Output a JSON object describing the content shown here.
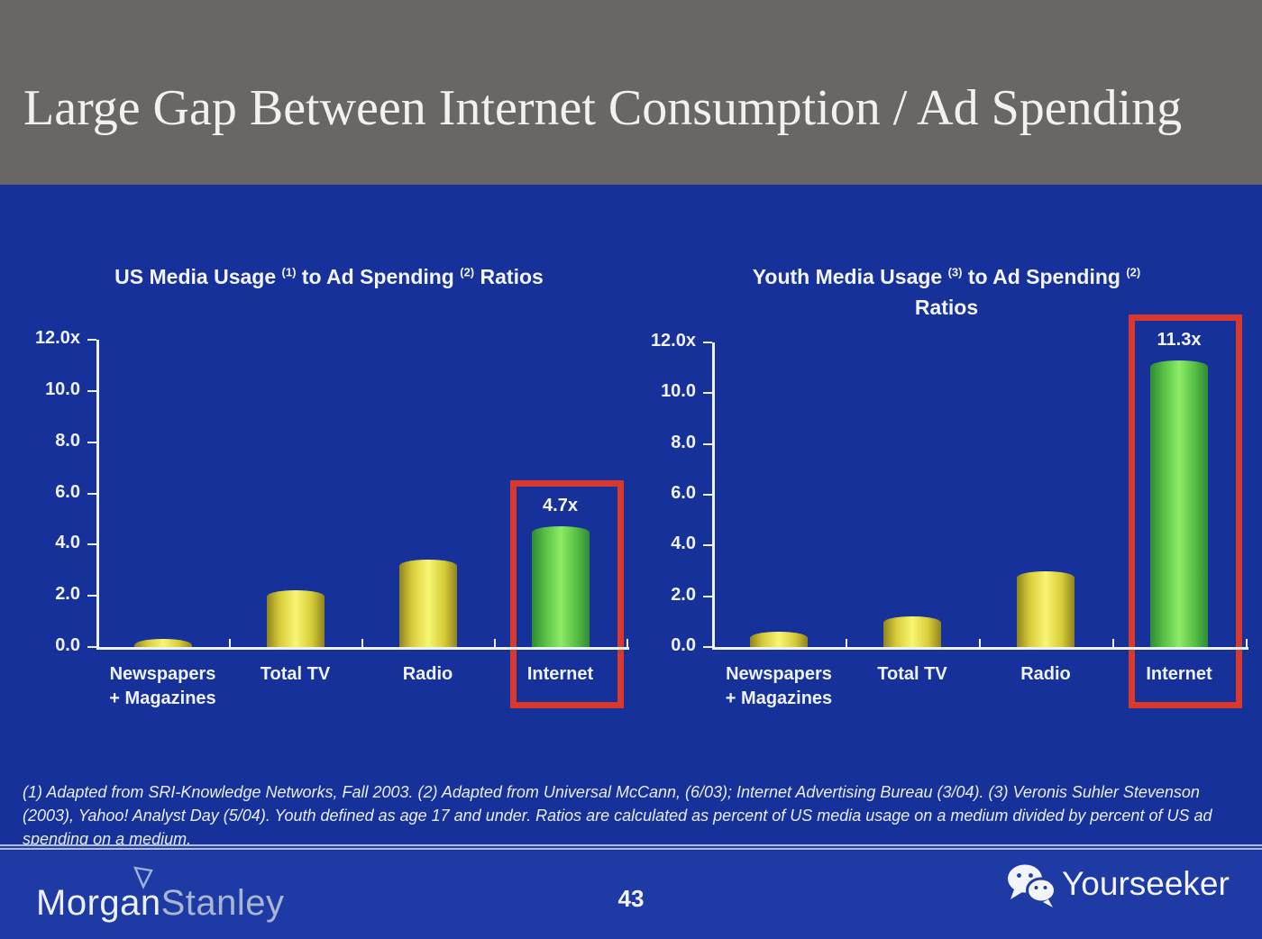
{
  "slide": {
    "title": "Large Gap Between Internet Consumption / Ad Spending",
    "page_number": "43"
  },
  "footnote": "(1) Adapted from SRI-Knowledge Networks, Fall 2003.  (2) Adapted from Universal McCann, (6/03); Internet Advertising Bureau (3/04). (3) Veronis Suhler Stevenson (2003), Yahoo! Analyst Day (5/04).  Youth defined as age 17 and under.  Ratios are calculated as percent of US media usage on a medium divided by percent of US ad spending on a medium.",
  "footer": {
    "logo_morgan": "Morgan",
    "logo_stanley": "Stanley",
    "brand": "Yourseeker"
  },
  "colors": {
    "header_bg": "#686766",
    "slide_bg": "#17319b",
    "footer_bg": "#1e3aa4",
    "bar_yellow": "#e9e34a",
    "bar_green": "#5cc348",
    "highlight_red": "#d9392d",
    "text": "#eef1f6"
  },
  "chart_data": [
    {
      "type": "bar",
      "title_lines": [
        [
          {
            "t": "US Media Usage "
          },
          {
            "sup": "(1)"
          },
          {
            "t": " to Ad Spending "
          },
          {
            "sup": "(2)"
          },
          {
            "t": " Ratios"
          }
        ]
      ],
      "categories": [
        [
          "Newspapers",
          "+ Magazines"
        ],
        [
          "Total TV"
        ],
        [
          "Radio"
        ],
        [
          "Internet"
        ]
      ],
      "values": [
        0.3,
        2.2,
        3.4,
        4.7
      ],
      "bar_styles": [
        "yellow",
        "yellow",
        "yellow",
        "green"
      ],
      "data_labels": [
        "",
        "",
        "",
        "4.7x"
      ],
      "highlight_index": 3,
      "y_tick_values": [
        0,
        2,
        4,
        6,
        8,
        10,
        12
      ],
      "y_tick_labels": [
        "0.0",
        "2.0",
        "4.0",
        "6.0",
        "8.0",
        "10.0",
        "12.0x"
      ],
      "ylim": [
        0,
        12
      ],
      "xlabel": "",
      "ylabel": "",
      "grid": false,
      "legend": false
    },
    {
      "type": "bar",
      "title_lines": [
        [
          {
            "t": "Youth Media Usage "
          },
          {
            "sup": "(3)"
          },
          {
            "t": " to Ad Spending "
          },
          {
            "sup": "(2)"
          }
        ],
        [
          {
            "t": "Ratios"
          }
        ]
      ],
      "categories": [
        [
          "Newspapers",
          "+ Magazines"
        ],
        [
          "Total TV"
        ],
        [
          "Radio"
        ],
        [
          "Internet"
        ]
      ],
      "values": [
        0.6,
        1.2,
        3.0,
        11.3
      ],
      "bar_styles": [
        "yellow",
        "yellow",
        "yellow",
        "green"
      ],
      "data_labels": [
        "",
        "",
        "",
        "11.3x"
      ],
      "highlight_index": 3,
      "y_tick_values": [
        0,
        2,
        4,
        6,
        8,
        10,
        12
      ],
      "y_tick_labels": [
        "0.0",
        "2.0",
        "4.0",
        "6.0",
        "8.0",
        "10.0",
        "12.0x"
      ],
      "ylim": [
        0,
        12
      ],
      "xlabel": "",
      "ylabel": "",
      "grid": false,
      "legend": false
    }
  ]
}
